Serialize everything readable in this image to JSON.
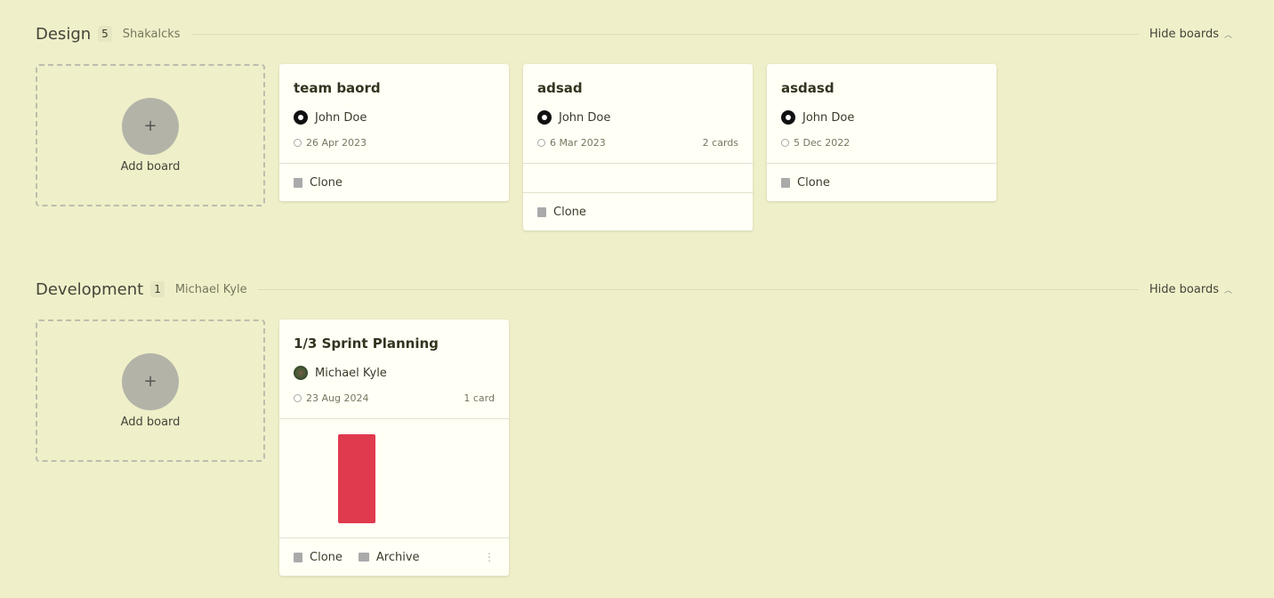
{
  "sections": [
    {
      "title": "Design",
      "count": "5",
      "owner": "Shakalcks",
      "hide_label": "Hide boards",
      "add_label": "Add board",
      "boards": [
        {
          "title": "team baord",
          "user": "John Doe",
          "date": "26 Apr 2023",
          "cards": "",
          "clone": "Clone"
        },
        {
          "title": "adsad",
          "user": "John Doe",
          "date": "6 Mar 2023",
          "cards": "2 cards",
          "clone": "Clone"
        },
        {
          "title": "asdasd",
          "user": "John Doe",
          "date": "5 Dec 2022",
          "cards": "",
          "clone": "Clone"
        }
      ]
    },
    {
      "title": "Development",
      "count": "1",
      "owner": "Michael Kyle",
      "hide_label": "Hide boards",
      "add_label": "Add board",
      "boards": [
        {
          "title": "1/3 Sprint Planning",
          "user": "Michael Kyle",
          "date": "23 Aug 2024",
          "cards": "1 card",
          "clone": "Clone",
          "archive": "Archive",
          "preview_color": "#e03a4e"
        }
      ]
    }
  ]
}
